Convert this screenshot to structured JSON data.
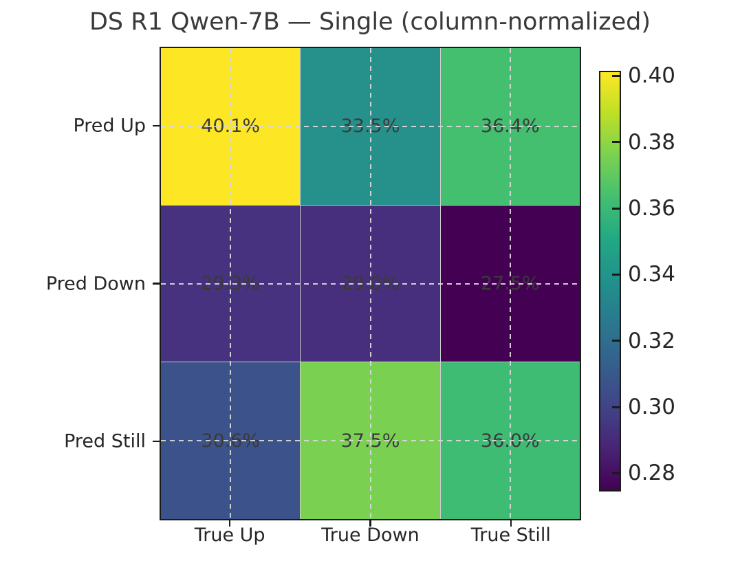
{
  "figure": {
    "background": "#ffffff"
  },
  "chart_data": {
    "type": "heatmap",
    "title": "DS R1 Qwen-7B — Single (column-normalized)",
    "row_labels": [
      "Pred Up",
      "Pred Down",
      "Pred Still"
    ],
    "col_labels": [
      "True Up",
      "True Down",
      "True Still"
    ],
    "values_percent": [
      [
        40.1,
        33.5,
        36.4
      ],
      [
        29.3,
        29.0,
        27.5
      ],
      [
        30.6,
        37.5,
        36.0
      ]
    ],
    "cell_labels": [
      [
        "40.1%",
        "33.5%",
        "36.4%"
      ],
      [
        "29.3%",
        "29.0%",
        "27.5%"
      ],
      [
        "30.6%",
        "37.5%",
        "36.0%"
      ]
    ],
    "cell_colors": [
      [
        "#fde725",
        "#26918b",
        "#44bf70"
      ],
      [
        "#46327e",
        "#472f7d",
        "#440154"
      ],
      [
        "#3b528b",
        "#7ad151",
        "#3ebc74"
      ]
    ],
    "colorbar": {
      "tick_labels": [
        "0.40",
        "0.38",
        "0.36",
        "0.34",
        "0.32",
        "0.30",
        "0.28"
      ],
      "tick_values": [
        0.4,
        0.38,
        0.36,
        0.34,
        0.32,
        0.3,
        0.28
      ],
      "vmin": 0.275,
      "vmax": 0.401,
      "colormap": "viridis",
      "gradient_top_to_bottom": [
        "#fde725",
        "#bddf26",
        "#7ad151",
        "#44bf70",
        "#22a884",
        "#21918c",
        "#2a788e",
        "#355f8d",
        "#414487",
        "#482475",
        "#440154"
      ]
    },
    "grid": true,
    "gridline_style": "dashed",
    "legend_position": "right-colorbar",
    "colors": {
      "cell_text": "#3a3a3a",
      "axis_text": "#262626",
      "spine": "#1a1a1a",
      "gridline": "#d7d7d7"
    }
  }
}
